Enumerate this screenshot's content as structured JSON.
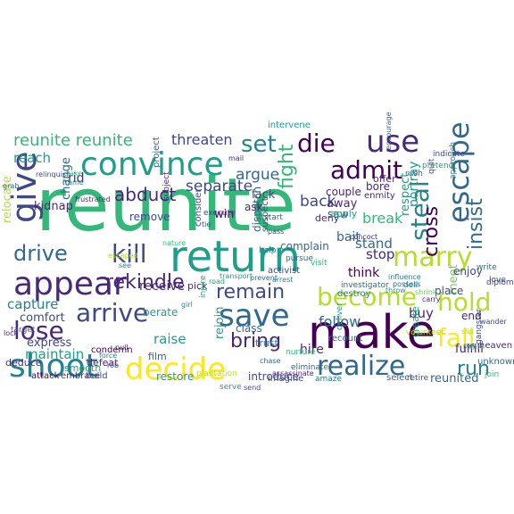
{
  "colors": {
    "background": "#ffffff",
    "palette": [
      "#440154",
      "#482878",
      "#3e4989",
      "#31688e",
      "#26828e",
      "#1f9e89",
      "#35b779",
      "#6ece58",
      "#b5de2b",
      "#fde725"
    ]
  },
  "words": [
    {
      "text": "reunite",
      "c": 6
    },
    {
      "text": "return",
      "c": 5
    },
    {
      "text": "make",
      "c": 0
    },
    {
      "text": "convince",
      "c": 5
    },
    {
      "text": "use",
      "c": 1
    },
    {
      "text": "give",
      "c": 2
    },
    {
      "text": "appear",
      "c": 1
    },
    {
      "text": "shoot",
      "c": 4
    },
    {
      "text": "decide",
      "c": 9
    },
    {
      "text": "save",
      "c": 3
    },
    {
      "text": "become",
      "c": 8
    },
    {
      "text": "marry",
      "c": 8
    },
    {
      "text": "escape",
      "c": 3
    },
    {
      "text": "arrive",
      "c": 2
    },
    {
      "text": "die",
      "c": 0
    },
    {
      "text": "hold",
      "c": 8
    },
    {
      "text": "fall",
      "c": 9
    },
    {
      "text": "realize",
      "c": 3
    },
    {
      "text": "admit",
      "c": 0
    },
    {
      "text": "kill",
      "c": 2
    },
    {
      "text": "remain",
      "c": 2
    },
    {
      "text": "lose",
      "c": 1
    },
    {
      "text": "insist",
      "c": 3
    },
    {
      "text": "steal",
      "c": 4
    },
    {
      "text": "cross",
      "c": 0
    },
    {
      "text": "drive",
      "c": 3
    },
    {
      "text": "set",
      "c": 4
    },
    {
      "text": "rekindle",
      "c": 1
    },
    {
      "text": "bring",
      "c": 1
    },
    {
      "text": "run",
      "c": 4
    },
    {
      "text": "abduct",
      "c": 1
    },
    {
      "text": "fight",
      "c": 6
    },
    {
      "text": "reunite reunite",
      "c": 6
    },
    {
      "text": "threaten",
      "c": 2
    },
    {
      "text": "separate",
      "c": 2
    },
    {
      "text": "argue",
      "c": 3
    },
    {
      "text": "back",
      "c": 2
    },
    {
      "text": "stop",
      "c": 1
    },
    {
      "text": "break",
      "c": 6
    },
    {
      "text": "stand",
      "c": 3
    },
    {
      "text": "think",
      "c": 0
    },
    {
      "text": "follow",
      "c": 3
    },
    {
      "text": "buy",
      "c": 1
    },
    {
      "text": "meet",
      "c": 7
    },
    {
      "text": "capture",
      "c": 4
    },
    {
      "text": "maintain",
      "c": 5
    },
    {
      "text": "raise",
      "c": 5
    },
    {
      "text": "receive",
      "c": 1
    },
    {
      "text": "rejoin",
      "c": 5
    },
    {
      "text": "hire",
      "c": 1
    },
    {
      "text": "fulfill",
      "c": 1
    },
    {
      "text": "reunited",
      "c": 3
    },
    {
      "text": "restore",
      "c": 5
    },
    {
      "text": "introduce",
      "c": 2
    },
    {
      "text": "reach",
      "c": 5
    },
    {
      "text": "rid",
      "c": 1
    },
    {
      "text": "kidnap",
      "c": 1
    },
    {
      "text": "change",
      "c": 3
    },
    {
      "text": "comfort",
      "c": 2
    },
    {
      "text": "express",
      "c": 2
    },
    {
      "text": "remove",
      "c": 2
    },
    {
      "text": "win",
      "c": 0
    },
    {
      "text": "couple",
      "c": 1
    },
    {
      "text": "dispatch",
      "c": 3
    },
    {
      "text": "suspect",
      "c": 2
    },
    {
      "text": "lack",
      "c": 2
    },
    {
      "text": "ask",
      "c": 1
    },
    {
      "text": "away",
      "c": 1
    },
    {
      "text": "deny",
      "c": 1
    },
    {
      "text": "saw",
      "c": 2
    },
    {
      "text": "bore",
      "c": 1
    },
    {
      "text": "offer",
      "c": 1
    },
    {
      "text": "portray",
      "c": 5
    },
    {
      "text": "respect",
      "c": 5
    },
    {
      "text": "bait",
      "c": 3
    },
    {
      "text": "apply",
      "c": 5
    },
    {
      "text": "complain",
      "c": 3
    },
    {
      "text": "enjoy",
      "c": 2
    },
    {
      "text": "place",
      "c": 2
    },
    {
      "text": "end",
      "c": 1
    },
    {
      "text": "class",
      "c": 3
    },
    {
      "text": "trust",
      "c": 4
    },
    {
      "text": "create",
      "c": 5
    },
    {
      "text": "relocate",
      "c": 8
    },
    {
      "text": "deduce",
      "c": 1
    },
    {
      "text": "smooth",
      "c": 5
    },
    {
      "text": "defeat",
      "c": 1
    },
    {
      "text": "berate",
      "c": 5
    },
    {
      "text": "condemn",
      "c": 0
    },
    {
      "text": "pick",
      "c": 1
    },
    {
      "text": "film",
      "c": 3
    },
    {
      "text": "injure",
      "c": 5
    },
    {
      "text": "attack",
      "c": 0
    },
    {
      "text": "embrace",
      "c": 1
    },
    {
      "text": "build",
      "c": 2
    },
    {
      "text": "heaven",
      "c": 1
    },
    {
      "text": "unknown",
      "c": 3
    },
    {
      "text": "intervene",
      "c": 5
    },
    {
      "text": "project",
      "c": 3
    },
    {
      "text": "subject",
      "c": 1
    },
    {
      "text": "consider",
      "c": 2
    },
    {
      "text": "execute",
      "c": 2
    },
    {
      "text": "start",
      "c": 3
    },
    {
      "text": "help",
      "c": 4
    },
    {
      "text": "pass",
      "c": 2
    },
    {
      "text": "activist",
      "c": 2
    },
    {
      "text": "gangster",
      "c": 2
    },
    {
      "text": "pursue",
      "c": 3
    },
    {
      "text": "destroy",
      "c": 4
    },
    {
      "text": "recount",
      "c": 3
    },
    {
      "text": "deliver",
      "c": 5
    },
    {
      "text": "investigator",
      "c": 3
    },
    {
      "text": "diplomat",
      "c": 2
    },
    {
      "text": "visit",
      "c": 6
    },
    {
      "text": "enmity",
      "c": 1
    },
    {
      "text": "quit",
      "c": 2
    },
    {
      "text": "rush",
      "c": 3
    },
    {
      "text": "pretend",
      "c": 5
    },
    {
      "text": "indicate",
      "c": 2
    },
    {
      "text": "encourage",
      "c": 3
    },
    {
      "text": "approach",
      "c": 4
    },
    {
      "text": "write",
      "c": 3
    },
    {
      "text": "love",
      "c": 2
    },
    {
      "text": "join",
      "c": 6
    },
    {
      "text": "nurture",
      "c": 6
    },
    {
      "text": "imagine",
      "c": 2
    },
    {
      "text": "eliminate",
      "c": 3
    },
    {
      "text": "amaze",
      "c": 4
    },
    {
      "text": "select",
      "c": 3
    },
    {
      "text": "retire",
      "c": 2
    },
    {
      "text": "plantation",
      "c": 8
    },
    {
      "text": "serve",
      "c": 5
    },
    {
      "text": "send",
      "c": 2
    },
    {
      "text": "chase",
      "c": 3
    },
    {
      "text": "assassinate",
      "c": 1
    },
    {
      "text": "volunteer",
      "c": 8
    },
    {
      "text": "target",
      "c": 3
    },
    {
      "text": "lock",
      "c": 1
    },
    {
      "text": "pull",
      "c": 1
    },
    {
      "text": "force",
      "c": 4
    },
    {
      "text": "grab",
      "c": 3
    },
    {
      "text": "frustrated",
      "c": 1
    },
    {
      "text": "relinquish",
      "c": 2
    },
    {
      "text": "concoct",
      "c": 1
    },
    {
      "text": "influence",
      "c": 4
    },
    {
      "text": "doll",
      "c": 5
    },
    {
      "text": "shrink",
      "c": 7
    },
    {
      "text": "possess",
      "c": 3
    },
    {
      "text": "carry",
      "c": 1
    },
    {
      "text": "slip",
      "c": 8
    },
    {
      "text": "drop",
      "c": 7
    },
    {
      "text": "wander",
      "c": 2
    },
    {
      "text": "pay",
      "c": 3
    },
    {
      "text": "mail",
      "c": 1
    },
    {
      "text": "tie",
      "c": 2
    },
    {
      "text": "nature",
      "c": 6
    },
    {
      "text": "transport",
      "c": 5
    },
    {
      "text": "road",
      "c": 5
    },
    {
      "text": "girl",
      "c": 4
    },
    {
      "text": "rob",
      "c": 2
    },
    {
      "text": "prevent",
      "c": 3
    },
    {
      "text": "arrest",
      "c": 4
    },
    {
      "text": "escaped",
      "c": 8
    },
    {
      "text": "see",
      "c": 4
    },
    {
      "text": "take",
      "c": 6
    },
    {
      "text": "frame",
      "c": 4
    },
    {
      "text": "throw",
      "c": 5
    }
  ]
}
